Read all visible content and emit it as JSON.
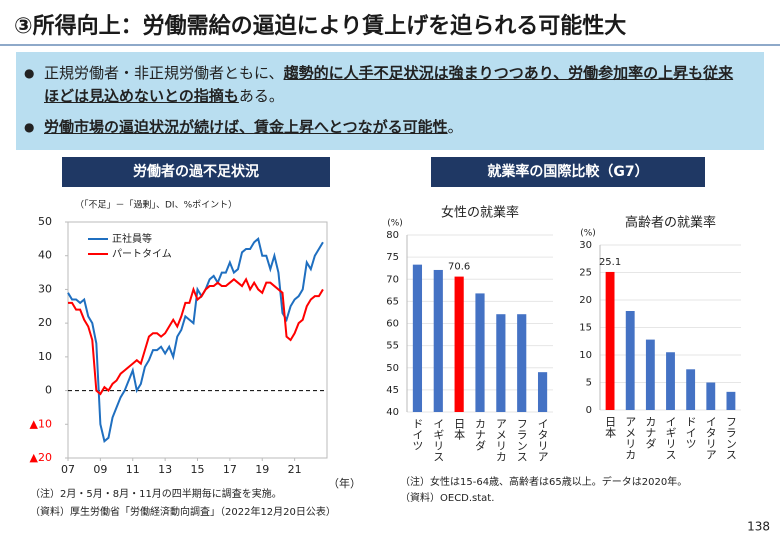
{
  "title": "③所得向上：労働需給の逼迫により賃上げを迫られる可能性大",
  "bullets": [
    [
      {
        "text": "正規労働者・非正規労働者ともに、",
        "em": false
      },
      {
        "text": "趨勢的に人手不足状況は強まりつつあり、労働参加率の上昇も従来ほどは見込めないとの指摘も",
        "em": true
      },
      {
        "text": "ある。",
        "em": false
      }
    ],
    [
      {
        "text": "労働市場の逼迫状況が続けば、賃金上昇へとつながる可能性",
        "em": true
      },
      {
        "text": "。",
        "em": false
      }
    ]
  ],
  "group_title": "就業率の国際比較（G7）",
  "notes_left": [
    "（注）2月・5月・8月・11月の四半期毎に調査を実施。",
    "（資料）厚生労働省「労働経済動向調査」（2022年12月20日公表）"
  ],
  "notes_right": [
    "（注）女性は15-64歳、高齢者は65歳以上。データは2020年。",
    "（資料）OECD.stat."
  ],
  "page_number": "138",
  "chart_data": [
    {
      "type": "line",
      "title": "労働者の過不足状況",
      "note": "（「不足」－「過剰」、DI、%ポイント）",
      "x_label": "（年）",
      "x": [
        7,
        7.25,
        7.5,
        7.75,
        8,
        8.25,
        8.5,
        8.75,
        9,
        9.25,
        9.5,
        9.75,
        10,
        10.25,
        10.5,
        10.75,
        11,
        11.25,
        11.5,
        11.75,
        12,
        12.25,
        12.5,
        12.75,
        13,
        13.25,
        13.5,
        13.75,
        14,
        14.25,
        14.5,
        14.75,
        15,
        15.25,
        15.5,
        15.75,
        16,
        16.25,
        16.5,
        16.75,
        17,
        17.25,
        17.5,
        17.75,
        18,
        18.25,
        18.5,
        18.75,
        19,
        19.25,
        19.5,
        19.75,
        20,
        20.25,
        20.5,
        20.75,
        21,
        21.25,
        21.5,
        21.75,
        22,
        22.25,
        22.5,
        22.75
      ],
      "series": [
        {
          "name": "正社員等",
          "color": "#1f6fc0",
          "values": [
            29,
            27,
            27,
            26,
            27,
            22,
            20,
            14,
            -10,
            -15,
            -14,
            -8,
            -5,
            -2,
            0,
            3,
            6,
            0,
            2,
            7,
            9,
            12,
            12,
            13,
            11,
            13,
            10,
            16,
            18,
            22,
            21,
            20,
            30,
            28,
            30,
            33,
            34,
            32,
            35,
            35,
            38,
            35,
            36,
            41,
            42,
            42,
            44,
            45,
            40,
            40,
            36,
            40,
            35,
            23,
            21,
            25,
            27,
            28,
            30,
            38,
            36,
            40,
            42,
            44
          ]
        },
        {
          "name": "パートタイム",
          "color": "#ff0000",
          "values": [
            26,
            26,
            24,
            24,
            21,
            19,
            15,
            0,
            -1,
            1,
            0,
            2,
            3,
            5,
            6,
            7,
            8,
            9,
            8,
            12,
            16,
            17,
            17,
            16,
            17,
            19,
            21,
            19,
            22,
            26,
            26,
            30,
            27,
            28,
            30,
            31,
            31,
            32,
            31,
            31,
            32,
            33,
            32,
            31,
            33,
            30,
            32,
            30,
            29,
            32,
            32,
            31,
            30,
            29,
            16,
            15,
            17,
            20,
            21,
            25,
            27,
            28,
            28,
            30
          ]
        }
      ],
      "xlim": [
        7,
        23
      ],
      "xticks": [
        {
          "value": 7,
          "label": "07"
        },
        {
          "value": 9,
          "label": "09"
        },
        11,
        13,
        15,
        17,
        19,
        21
      ],
      "ylim": [
        -20,
        50
      ],
      "yticks": [
        50,
        40,
        30,
        20,
        10,
        0,
        {
          "value": -10,
          "label": "▲10"
        },
        {
          "value": -20,
          "label": "▲20"
        }
      ],
      "negative_tick_color": "#ff0000",
      "grid": false,
      "legend": "upper-left"
    },
    {
      "type": "bar",
      "title": "女性の就業率",
      "unit": "(%)",
      "categories": [
        "ドイツ",
        "イギリス",
        "日本",
        "カナダ",
        "アメリカ",
        "フランス",
        "イタリア"
      ],
      "values": [
        73.3,
        72.1,
        70.6,
        66.8,
        62.1,
        62.1,
        49.0
      ],
      "color": "#4472c4",
      "highlight": {
        "index": 2,
        "color": "#ff0000"
      },
      "ylim": [
        40,
        80
      ],
      "yticks": [
        40,
        45,
        50,
        55,
        60,
        65,
        70,
        75,
        80
      ],
      "grid": true
    },
    {
      "type": "bar",
      "title": "高齢者の就業率",
      "unit": "(%)",
      "categories": [
        "日本",
        "アメリカ",
        "カナダ",
        "イギリス",
        "ドイツ",
        "イタリア",
        "フランス"
      ],
      "values": [
        25.1,
        18.0,
        12.8,
        10.5,
        7.4,
        5.0,
        3.3
      ],
      "color": "#4472c4",
      "highlight": {
        "index": 0,
        "color": "#ff0000"
      },
      "ylim": [
        0,
        30
      ],
      "yticks": [
        0,
        5,
        10,
        15,
        20,
        25,
        30
      ],
      "grid": true
    }
  ]
}
